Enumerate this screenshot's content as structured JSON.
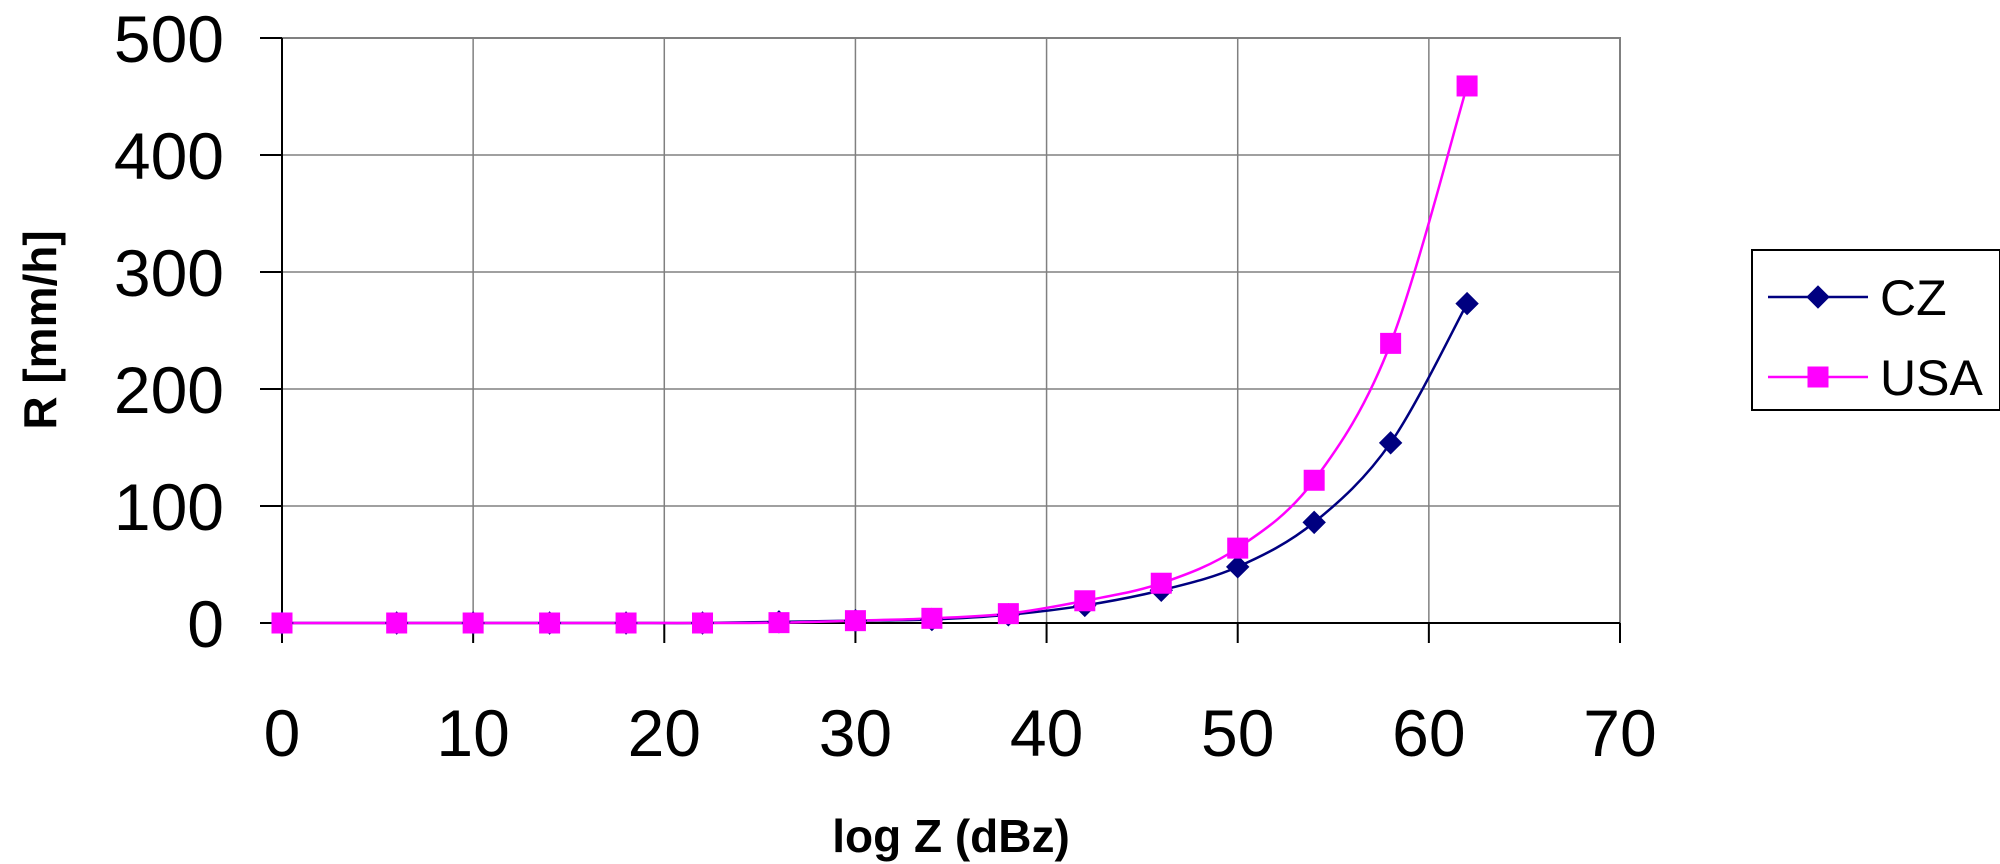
{
  "chart_data": {
    "type": "line",
    "xlabel": "log Z (dBz)",
    "ylabel": "R [mm/h]",
    "xlim": [
      0,
      70
    ],
    "ylim": [
      0,
      500
    ],
    "x_ticks": [
      0,
      10,
      20,
      30,
      40,
      50,
      60,
      70
    ],
    "y_ticks": [
      0,
      100,
      200,
      300,
      400,
      500
    ],
    "grid": true,
    "legend_position": "right",
    "x": [
      0,
      6,
      10,
      14,
      18,
      22,
      26,
      30,
      34,
      38,
      42,
      46,
      50,
      54,
      58,
      62
    ],
    "series": [
      {
        "name": "CZ",
        "color": "#000080",
        "marker": "diamond",
        "values": [
          0,
          0,
          0,
          0,
          0,
          0,
          1,
          2,
          3,
          7,
          15,
          28,
          48,
          86,
          154,
          273
        ]
      },
      {
        "name": "USA",
        "color": "#FF00FF",
        "marker": "square",
        "values": [
          0,
          0,
          0,
          0,
          0,
          0,
          0.3,
          2,
          4,
          8,
          19,
          34,
          64,
          122,
          239,
          459
        ]
      }
    ]
  }
}
